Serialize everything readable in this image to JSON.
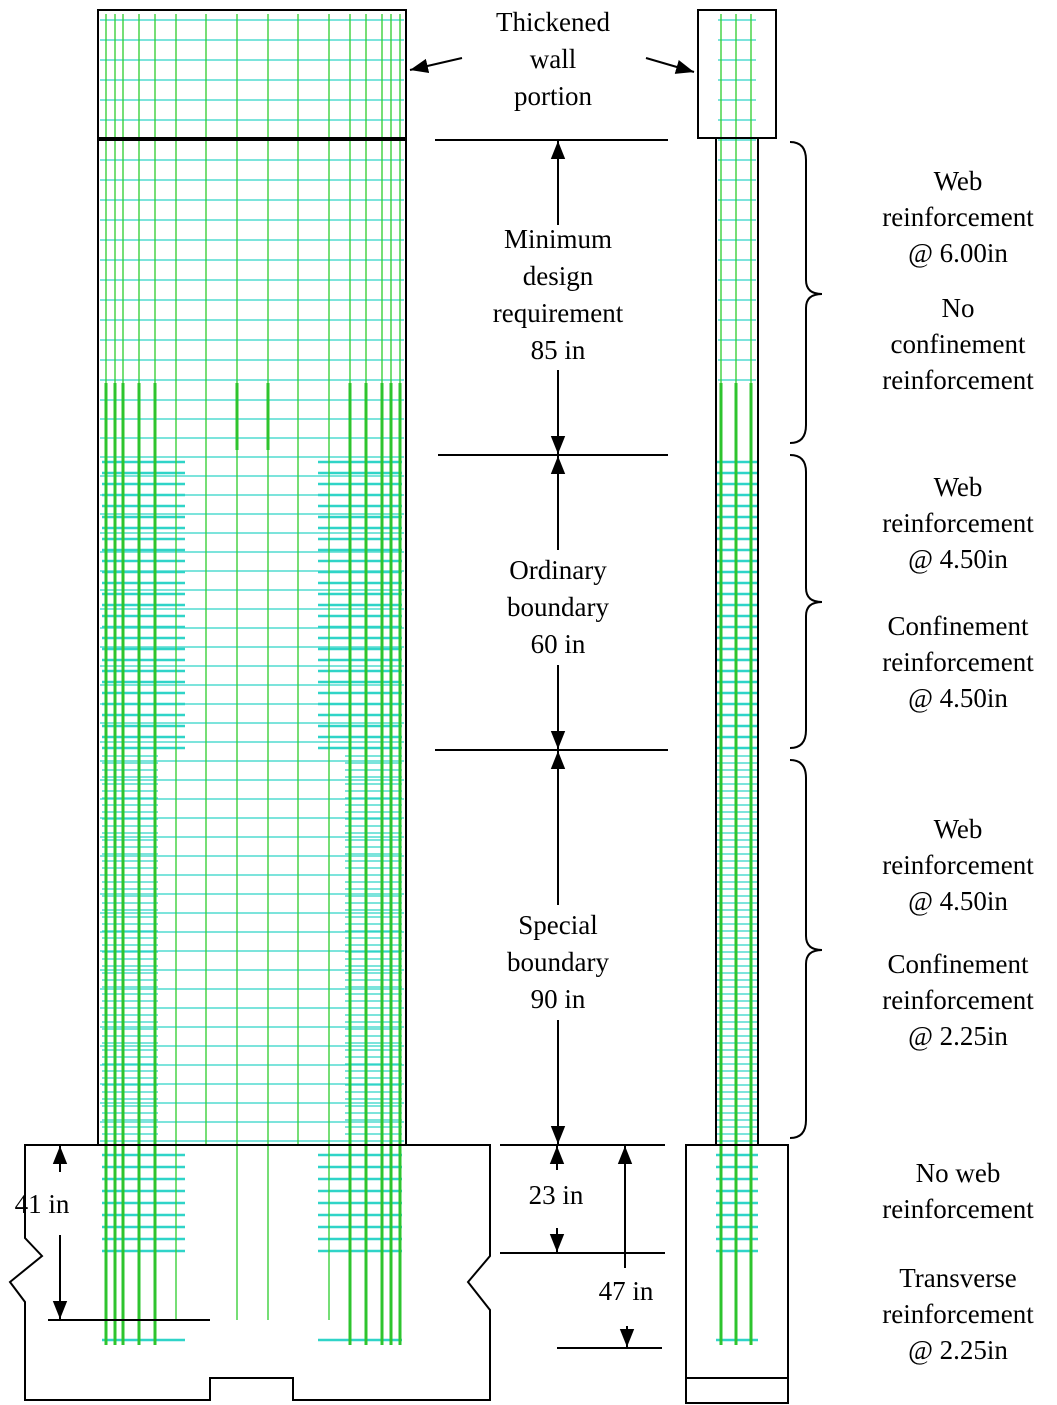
{
  "annotations": [
    {
      "lines": [
        "Thickened",
        "wall",
        "portion"
      ]
    },
    {
      "lines": [
        "Minimum",
        "design",
        "requirement",
        "85 in"
      ]
    },
    {
      "lines": [
        "Ordinary",
        "boundary",
        "60 in"
      ]
    },
    {
      "lines": [
        "Special",
        "boundary",
        "90 in"
      ]
    },
    {
      "lines": [
        "23 in"
      ]
    },
    {
      "lines": [
        "47 in"
      ]
    },
    {
      "lines": [
        "41 in"
      ]
    },
    {
      "lines": [
        "Web",
        "reinforcement",
        "@ 6.00in"
      ]
    },
    {
      "lines": [
        "No",
        "confinement",
        "reinforcement"
      ]
    },
    {
      "lines": [
        "Web",
        "reinforcement",
        "@ 4.50in"
      ]
    },
    {
      "lines": [
        "Confinement",
        "reinforcement",
        "@ 4.50in"
      ]
    },
    {
      "lines": [
        "Web",
        "reinforcement",
        "@ 4.50in"
      ]
    },
    {
      "lines": [
        "Confinement",
        "reinforcement",
        "@ 2.25in"
      ]
    },
    {
      "lines": [
        "No web",
        "reinforcement"
      ]
    },
    {
      "lines": [
        "Transverse",
        "reinforcement",
        "@ 2.25in"
      ]
    }
  ]
}
